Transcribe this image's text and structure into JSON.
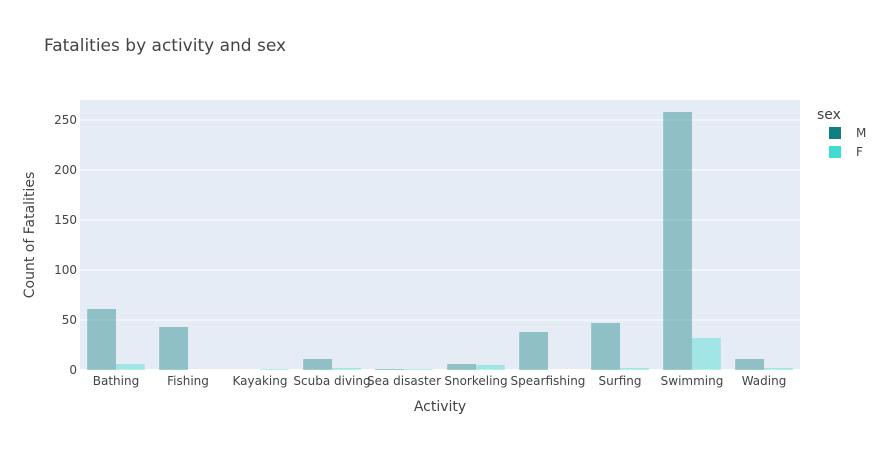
{
  "chart_data": {
    "type": "bar",
    "title": "Fatalities by activity and sex",
    "xlabel": "Activity",
    "ylabel": "Count of Fatalities",
    "categories": [
      "Bathing",
      "Fishing",
      "Kayaking",
      "Scuba diving",
      "Sea disaster",
      "Snorkeling",
      "Spearfishing",
      "Surfing",
      "Swimming",
      "Wading"
    ],
    "series": [
      {
        "name": "M",
        "values": [
          61,
          43,
          0,
          11,
          1,
          6,
          38,
          47,
          258,
          11
        ]
      },
      {
        "name": "F",
        "values": [
          6,
          0,
          1,
          2,
          1,
          5,
          0,
          2,
          32,
          2
        ]
      }
    ],
    "ylim": [
      0,
      270
    ],
    "yticks": [
      0,
      50,
      100,
      150,
      200,
      250
    ],
    "grid": true,
    "legend": {
      "title": "sex",
      "placement": "top-right"
    },
    "colors": {
      "M": "#0f7f80",
      "F": "#3fdccf",
      "plot_bg": "#e5ecf6"
    }
  }
}
